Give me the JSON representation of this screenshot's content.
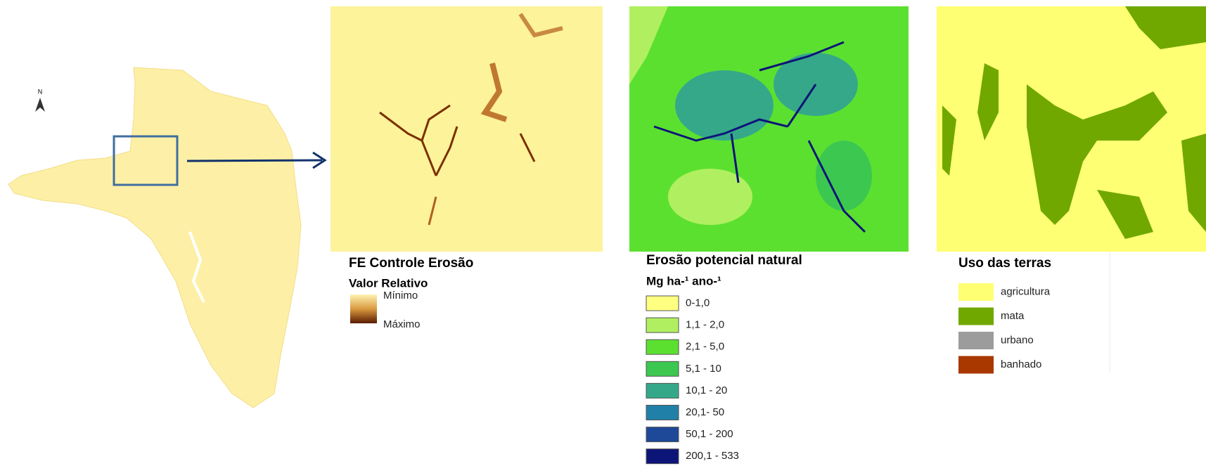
{
  "north": "N",
  "panel_1": {
    "title": "FE Controle Erosão",
    "subtitle": "Valor Relativo",
    "min_label": "Mínimo",
    "max_label": "Máximo"
  },
  "panel_2": {
    "title": "Erosão potencial natural",
    "unit": "Mg ha-¹ ano-¹",
    "legend": [
      {
        "label": "0-1,0",
        "color": "#ffff80"
      },
      {
        "label": "1,1 - 2,0",
        "color": "#b0f060"
      },
      {
        "label": "2,1 - 5,0",
        "color": "#5ce030"
      },
      {
        "label": "5,1 - 10",
        "color": "#3cc850"
      },
      {
        "label": "10,1 - 20",
        "color": "#35a88a"
      },
      {
        "label": "20,1- 50",
        "color": "#2080a8"
      },
      {
        "label": "50,1 - 200",
        "color": "#1e4898"
      },
      {
        "label": "200,1 - 533",
        "color": "#0c1478"
      }
    ]
  },
  "panel_3": {
    "title": "Uso das terras",
    "legend": [
      {
        "label": "agricultura",
        "color": "#ffff73"
      },
      {
        "label": "mata",
        "color": "#70a800"
      },
      {
        "label": "urbano",
        "color": "#9c9c9c"
      },
      {
        "label": "banhado",
        "color": "#a83800"
      }
    ]
  }
}
